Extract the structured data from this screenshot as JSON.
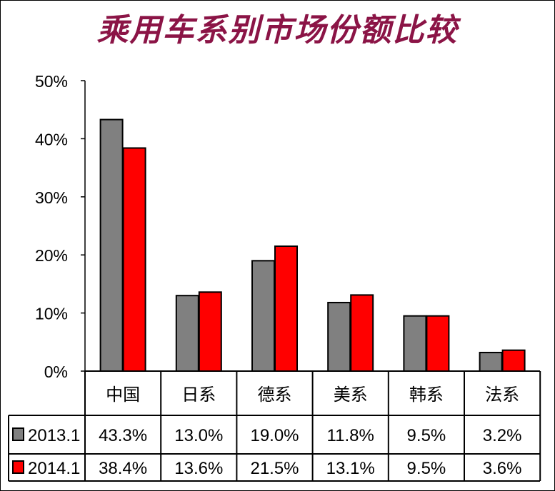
{
  "chart_data": {
    "type": "bar",
    "title": "乘用车系别市场份额比较",
    "categories": [
      "中国",
      "日系",
      "德系",
      "美系",
      "韩系",
      "法系"
    ],
    "series": [
      {
        "name": "2013.1",
        "values": [
          43.3,
          13.0,
          19.0,
          11.8,
          9.5,
          3.2
        ],
        "labels": [
          "43.3%",
          "13.0%",
          "19.0%",
          "11.8%",
          "9.5%",
          "3.2%"
        ],
        "color": "#808080"
      },
      {
        "name": "2014.1",
        "values": [
          38.4,
          13.6,
          21.5,
          13.1,
          9.5,
          3.6
        ],
        "labels": [
          "38.4%",
          "13.6%",
          "21.5%",
          "13.1%",
          "9.5%",
          "3.6%"
        ],
        "color": "#ff0000"
      }
    ],
    "ylim": [
      0,
      50
    ],
    "yticks": [
      0,
      10,
      20,
      30,
      40,
      50
    ],
    "ytick_labels": [
      "0%",
      "10%",
      "20%",
      "30%",
      "40%",
      "50%"
    ],
    "grid": false,
    "legend": "data-table"
  }
}
